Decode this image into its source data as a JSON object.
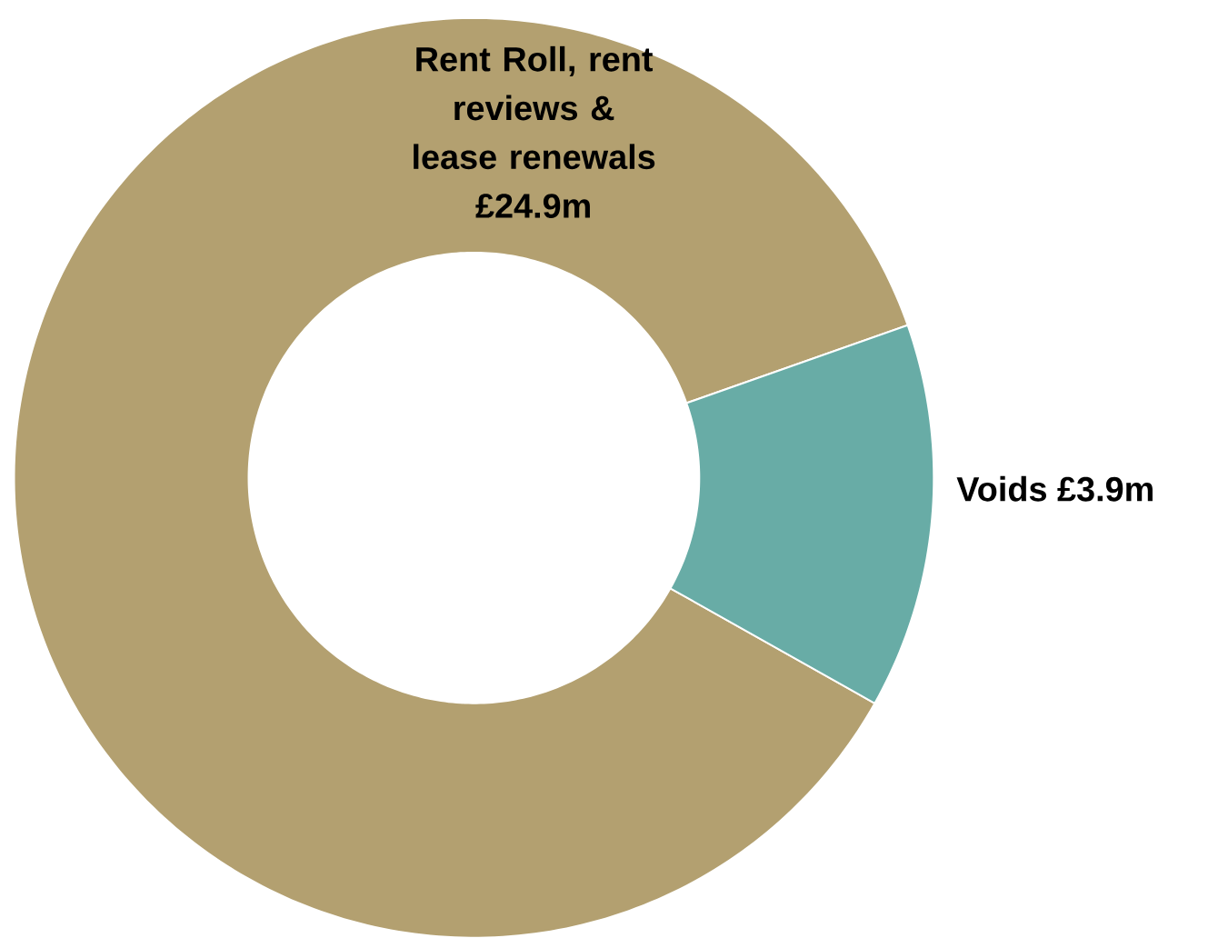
{
  "chart_data": {
    "type": "donut",
    "categories": [
      "Rent Roll, rent reviews & lease renewals",
      "Voids"
    ],
    "values": [
      24.9,
      3.9
    ],
    "value_labels": [
      "£24.9m",
      "£3.9m"
    ],
    "colors": [
      "#b3a070",
      "#68aca6"
    ]
  }
}
